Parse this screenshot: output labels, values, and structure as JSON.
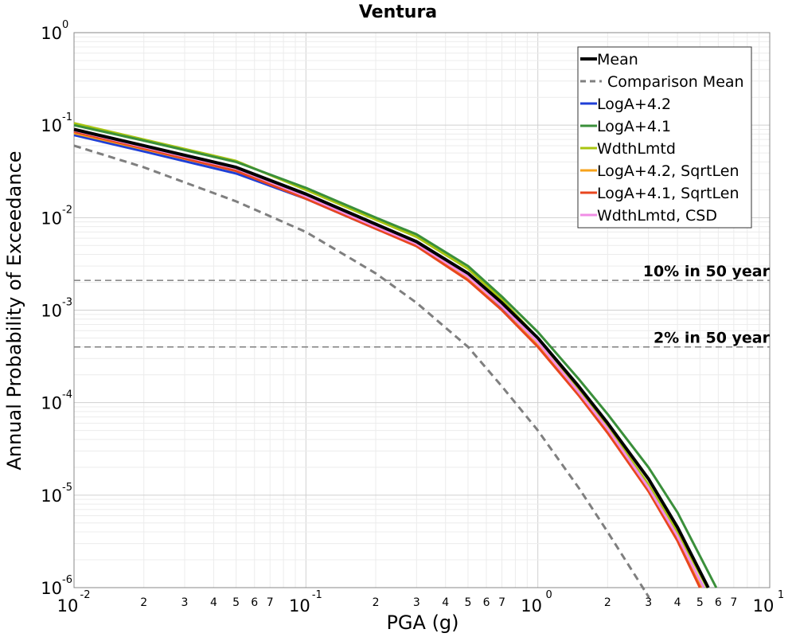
{
  "chart_data": {
    "type": "line",
    "title": "Ventura",
    "xlabel": "PGA (g)",
    "ylabel": "Annual Probability of Exceedance",
    "xscale": "log",
    "yscale": "log",
    "xlim": [
      0.01,
      10
    ],
    "ylim": [
      1e-06,
      1
    ],
    "grid": true,
    "legend_position": "top-right",
    "x_major_ticks": [
      {
        "base": "10",
        "exp": "-2"
      },
      {
        "base": "10",
        "exp": "-1"
      },
      {
        "base": "10",
        "exp": "0"
      },
      {
        "base": "10",
        "exp": "1"
      }
    ],
    "y_major_ticks": [
      {
        "base": "10",
        "exp": "0"
      },
      {
        "base": "10",
        "exp": "-1"
      },
      {
        "base": "10",
        "exp": "-2"
      },
      {
        "base": "10",
        "exp": "-3"
      },
      {
        "base": "10",
        "exp": "-4"
      },
      {
        "base": "10",
        "exp": "-5"
      },
      {
        "base": "10",
        "exp": "-6"
      }
    ],
    "x_minor_tick_labels": [
      "2",
      "3",
      "4",
      "5",
      "6",
      "7"
    ],
    "reference_lines": [
      {
        "label": "10% in 50 year",
        "y": 0.0021
      },
      {
        "label": "2% in 50 year",
        "y": 0.0004
      }
    ],
    "x": [
      0.01,
      0.02,
      0.05,
      0.1,
      0.2,
      0.3,
      0.5,
      0.7,
      1.0,
      1.5,
      2.0,
      3.0,
      4.0,
      5.0,
      6.0
    ],
    "series": [
      {
        "name": "Mean",
        "color": "#000000",
        "dash": "solid",
        "width": 4,
        "values": [
          0.09,
          0.06,
          0.035,
          0.018,
          0.0085,
          0.0055,
          0.0025,
          0.0012,
          0.0005,
          0.00015,
          6e-05,
          1.5e-05,
          4.5e-06,
          1.5e-06,
          null
        ]
      },
      {
        "name": "Comparison Mean",
        "color": "#7f7f7f",
        "dash": "dashed",
        "width": 3,
        "values": [
          0.06,
          0.035,
          0.015,
          0.007,
          0.0025,
          0.0012,
          0.0004,
          0.00015,
          5e-05,
          1.2e-05,
          4e-06,
          8e-07,
          null,
          null,
          null
        ]
      },
      {
        "name": "LogA+4.2",
        "color": "#1f3fd6",
        "dash": "solid",
        "width": 3,
        "values": [
          0.078,
          0.052,
          0.03,
          0.016,
          0.0076,
          0.005,
          0.0022,
          0.00105,
          0.00042,
          0.00013,
          5e-05,
          1.2e-05,
          3.5e-06,
          1.2e-06,
          null
        ]
      },
      {
        "name": "LogA+4.1",
        "color": "#3a8f3a",
        "dash": "solid",
        "width": 3,
        "values": [
          0.1,
          0.068,
          0.04,
          0.021,
          0.01,
          0.0066,
          0.003,
          0.0014,
          0.00058,
          0.00018,
          7.5e-05,
          2e-05,
          6.5e-06,
          2.2e-06,
          null
        ]
      },
      {
        "name": "WdthLmtd",
        "color": "#a8c410",
        "dash": "solid",
        "width": 3,
        "values": [
          0.105,
          0.07,
          0.041,
          0.02,
          0.0095,
          0.0062,
          0.0028,
          0.0013,
          0.0005,
          0.00014,
          5.5e-05,
          1.3e-05,
          4e-06,
          1.4e-06,
          null
        ]
      },
      {
        "name": "LogA+4.2, SqrtLen",
        "color": "#f7a21b",
        "dash": "solid",
        "width": 3,
        "values": [
          0.082,
          0.055,
          0.032,
          0.017,
          0.0078,
          0.005,
          0.0022,
          0.001,
          0.00042,
          0.00012,
          4.8e-05,
          1.1e-05,
          3.3e-06,
          1.1e-06,
          null
        ]
      },
      {
        "name": "LogA+4.1, SqrtLen",
        "color": "#e8461e",
        "dash": "solid",
        "width": 3,
        "values": [
          0.085,
          0.056,
          0.032,
          0.016,
          0.0076,
          0.0049,
          0.0021,
          0.001,
          0.0004,
          0.00012,
          4.7e-05,
          1.1e-05,
          3.2e-06,
          1e-06,
          null
        ]
      },
      {
        "name": "WdthLmtd, CSD",
        "color": "#f08ee6",
        "dash": "solid",
        "width": 3,
        "values": [
          0.088,
          0.058,
          0.034,
          0.017,
          0.008,
          0.0052,
          0.0023,
          0.0011,
          0.00045,
          0.00013,
          5.2e-05,
          1.2e-05,
          3.6e-06,
          1.2e-06,
          null
        ]
      }
    ]
  }
}
